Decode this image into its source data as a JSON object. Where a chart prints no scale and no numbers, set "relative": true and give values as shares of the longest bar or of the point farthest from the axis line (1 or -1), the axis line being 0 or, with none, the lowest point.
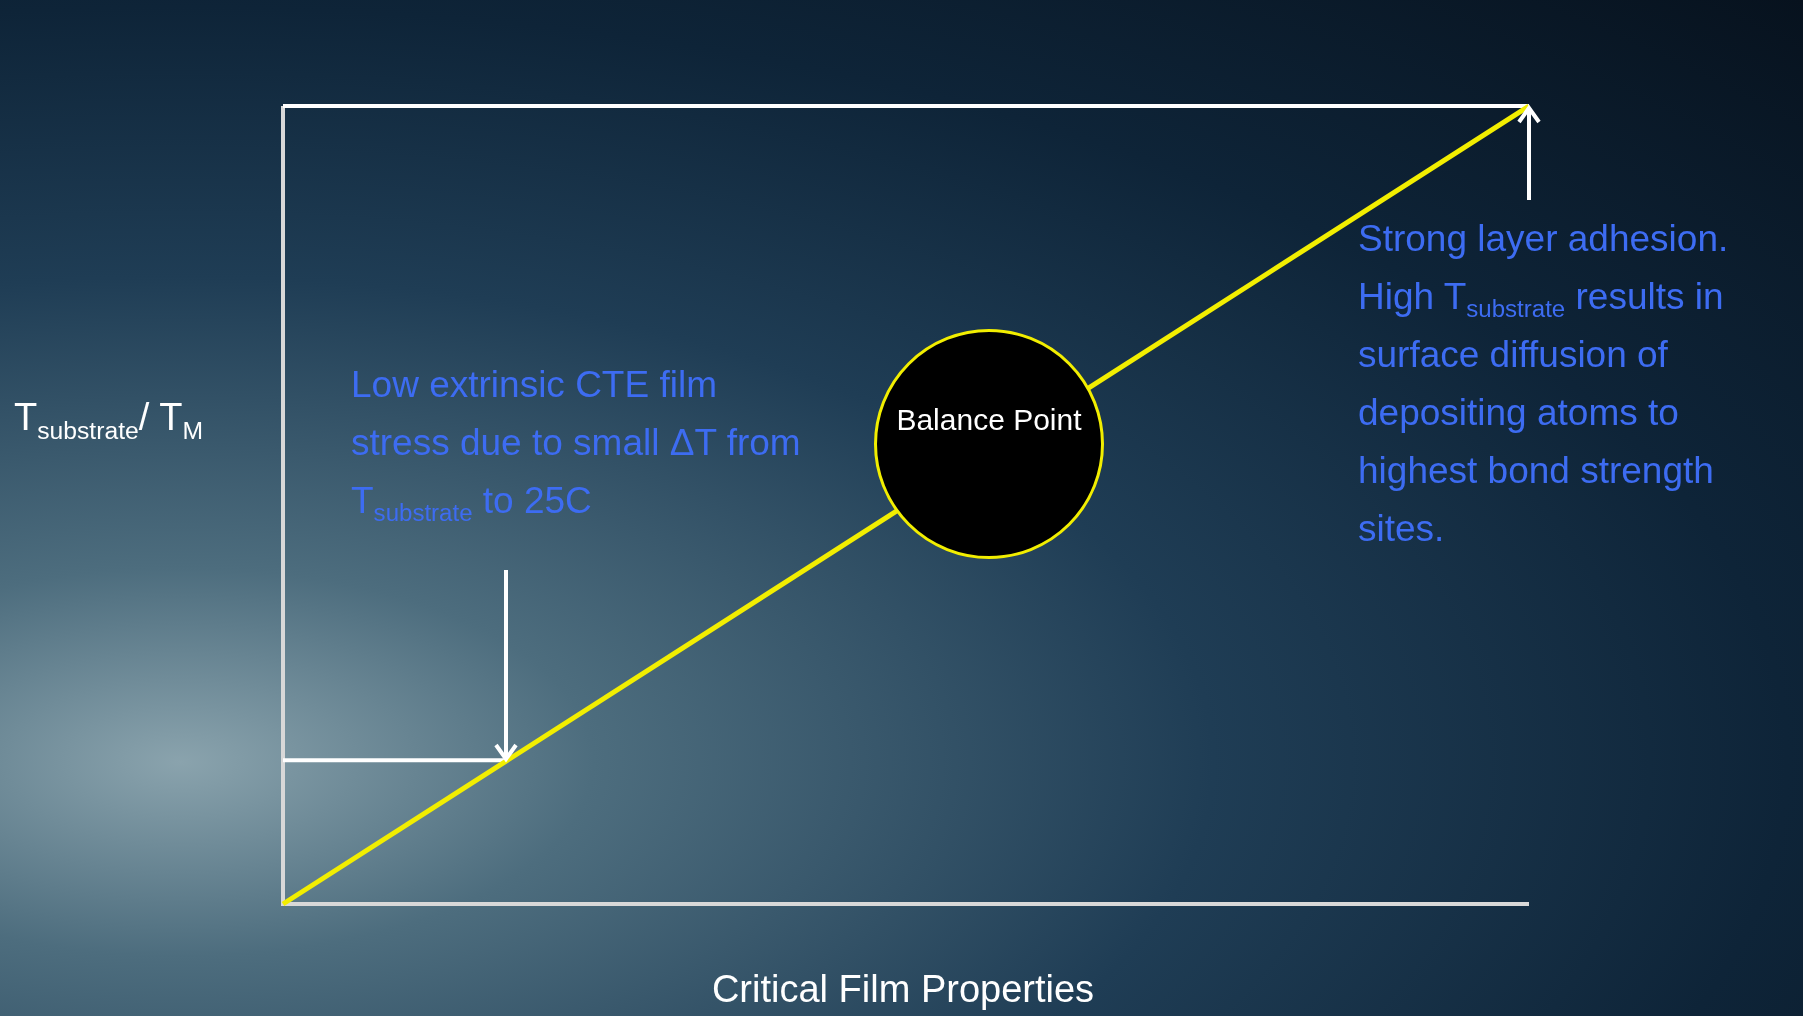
{
  "chart_data": {
    "type": "line",
    "relative": true,
    "xlabel": "Critical Film Properties",
    "ylabel": "T$_{substrate}$/ T$_{M}$",
    "categories": [
      null,
      null
    ],
    "series": [
      {
        "color": "#f2ee00",
        "values": [
          0,
          1
        ]
      }
    ],
    "marker": "none",
    "legend": false,
    "ref_lines": [
      {
        "axis": "y",
        "value": 1,
        "color": "#ffffff"
      },
      {
        "axis": "y",
        "value": 0.18,
        "color": "#ffffff"
      }
    ],
    "annotations": [
      "Low extrinsic CTE film stress due to small ΔT from T$_{substrate}$ to 25C",
      "Balance Point",
      "Strong layer adhesion. High T$_{substrate}$ results in surface diffusion of depositing atoms to highest bond strength sites."
    ]
  }
}
